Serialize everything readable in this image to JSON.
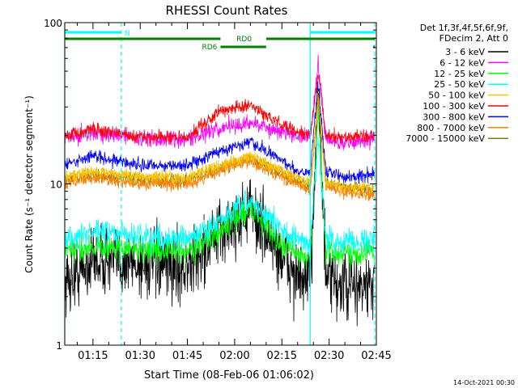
{
  "chart_data": {
    "type": "line",
    "title": "RHESSI Count Rates",
    "xlabel": "Start Time (08-Feb-06 01:06:02)",
    "ylabel": "Count Rate (s⁻¹ detector segment⁻¹)",
    "y_scale": "log",
    "ylim": [
      1,
      100
    ],
    "xlim": [
      "01:06:02",
      "02:45:00"
    ],
    "x_ticks": [
      "01:15",
      "01:30",
      "01:45",
      "02:00",
      "02:15",
      "02:30",
      "02:45"
    ],
    "y_ticks": [
      "1",
      "10",
      "100"
    ],
    "grid": false,
    "legend_position": "right",
    "legend_header": [
      "Det 1f,3f,4f,5f,6f,9f,",
      "FDecim 2, Att 0"
    ],
    "footer_date": "14-Oct-2021 00:30",
    "attenuator_bars": {
      "N_label": "N",
      "RD0_label": "RD0",
      "RD6_label": "RD6",
      "N_color": "#00ffff",
      "RD_color": "#008000",
      "N_intervals": [
        [
          "01:06:02",
          "01:24:00"
        ],
        [
          "02:24:00",
          "02:44:30"
        ]
      ],
      "RD0_intervals": [
        [
          "01:06:02",
          "01:55:30"
        ],
        [
          "02:10:00",
          "02:44:30"
        ]
      ],
      "RD6_intervals": [
        [
          "01:55:30",
          "02:10:00"
        ],
        [
          "02:44:00",
          "02:44:30"
        ]
      ]
    },
    "vertical_markers": {
      "solid_color": "#00ffff",
      "solid": [
        "01:06:02",
        "02:24:00"
      ],
      "dashed": [
        "01:24:00",
        "02:44:30"
      ]
    },
    "anchor_times": [
      "01:06:02",
      "01:15",
      "01:30",
      "01:45",
      "01:55",
      "02:05",
      "02:15",
      "02:20",
      "02:24",
      "02:26:30",
      "02:29",
      "02:35",
      "02:44"
    ],
    "series": [
      {
        "name": "3 - 6 keV",
        "color": "#000000",
        "noise": 0.48,
        "values": [
          2.4,
          3.4,
          3.2,
          3.0,
          4.8,
          7.0,
          3.5,
          2.6,
          2.3,
          45,
          2.5,
          2.3,
          2.3
        ]
      },
      {
        "name": "6 - 12 keV",
        "color": "#ff00ff",
        "noise": 0.12,
        "values": [
          19,
          21,
          19,
          19,
          22,
          24,
          21,
          20,
          20,
          55,
          19,
          18,
          19
        ]
      },
      {
        "name": "12 - 25 keV",
        "color": "#00ff00",
        "noise": 0.18,
        "values": [
          3.7,
          4.1,
          3.9,
          3.8,
          5.0,
          7.2,
          4.2,
          3.7,
          3.5,
          28,
          3.8,
          3.7,
          3.8
        ]
      },
      {
        "name": "25 - 50 keV",
        "color": "#00ffff",
        "noise": 0.17,
        "values": [
          4.5,
          5.0,
          4.8,
          4.5,
          5.8,
          7.8,
          5.2,
          4.5,
          4.3,
          19,
          4.5,
          4.4,
          4.5
        ]
      },
      {
        "name": "50 - 100 keV",
        "color": "#ffc000",
        "noise": 0.09,
        "values": [
          11,
          12,
          11,
          11,
          13,
          15,
          12,
          11,
          10,
          35,
          10,
          9.5,
          9.5
        ]
      },
      {
        "name": "100 - 300 keV",
        "color": "#ff0000",
        "noise": 0.09,
        "values": [
          20,
          22,
          19.5,
          19.5,
          28,
          31,
          23,
          21,
          20,
          48,
          20,
          19.5,
          20
        ]
      },
      {
        "name": "300 - 800 keV",
        "color": "#0000ff",
        "noise": 0.09,
        "values": [
          13,
          15,
          13,
          13,
          16,
          18,
          14,
          12,
          12,
          42,
          12,
          11,
          11.5
        ]
      },
      {
        "name": "800 - 7000 keV",
        "color": "#ff8000",
        "noise": 0.09,
        "values": [
          10,
          11,
          10,
          10,
          12,
          14,
          11,
          10,
          9,
          33,
          9.5,
          9,
          8.5
        ]
      },
      {
        "name": "7000 - 15000 keV",
        "color": "#808000",
        "noise": 0.09,
        "values": [
          10.5,
          11.5,
          10.5,
          10.5,
          12.5,
          14.5,
          11.5,
          10.5,
          9.5,
          34,
          10,
          9.5,
          9
        ]
      }
    ]
  }
}
